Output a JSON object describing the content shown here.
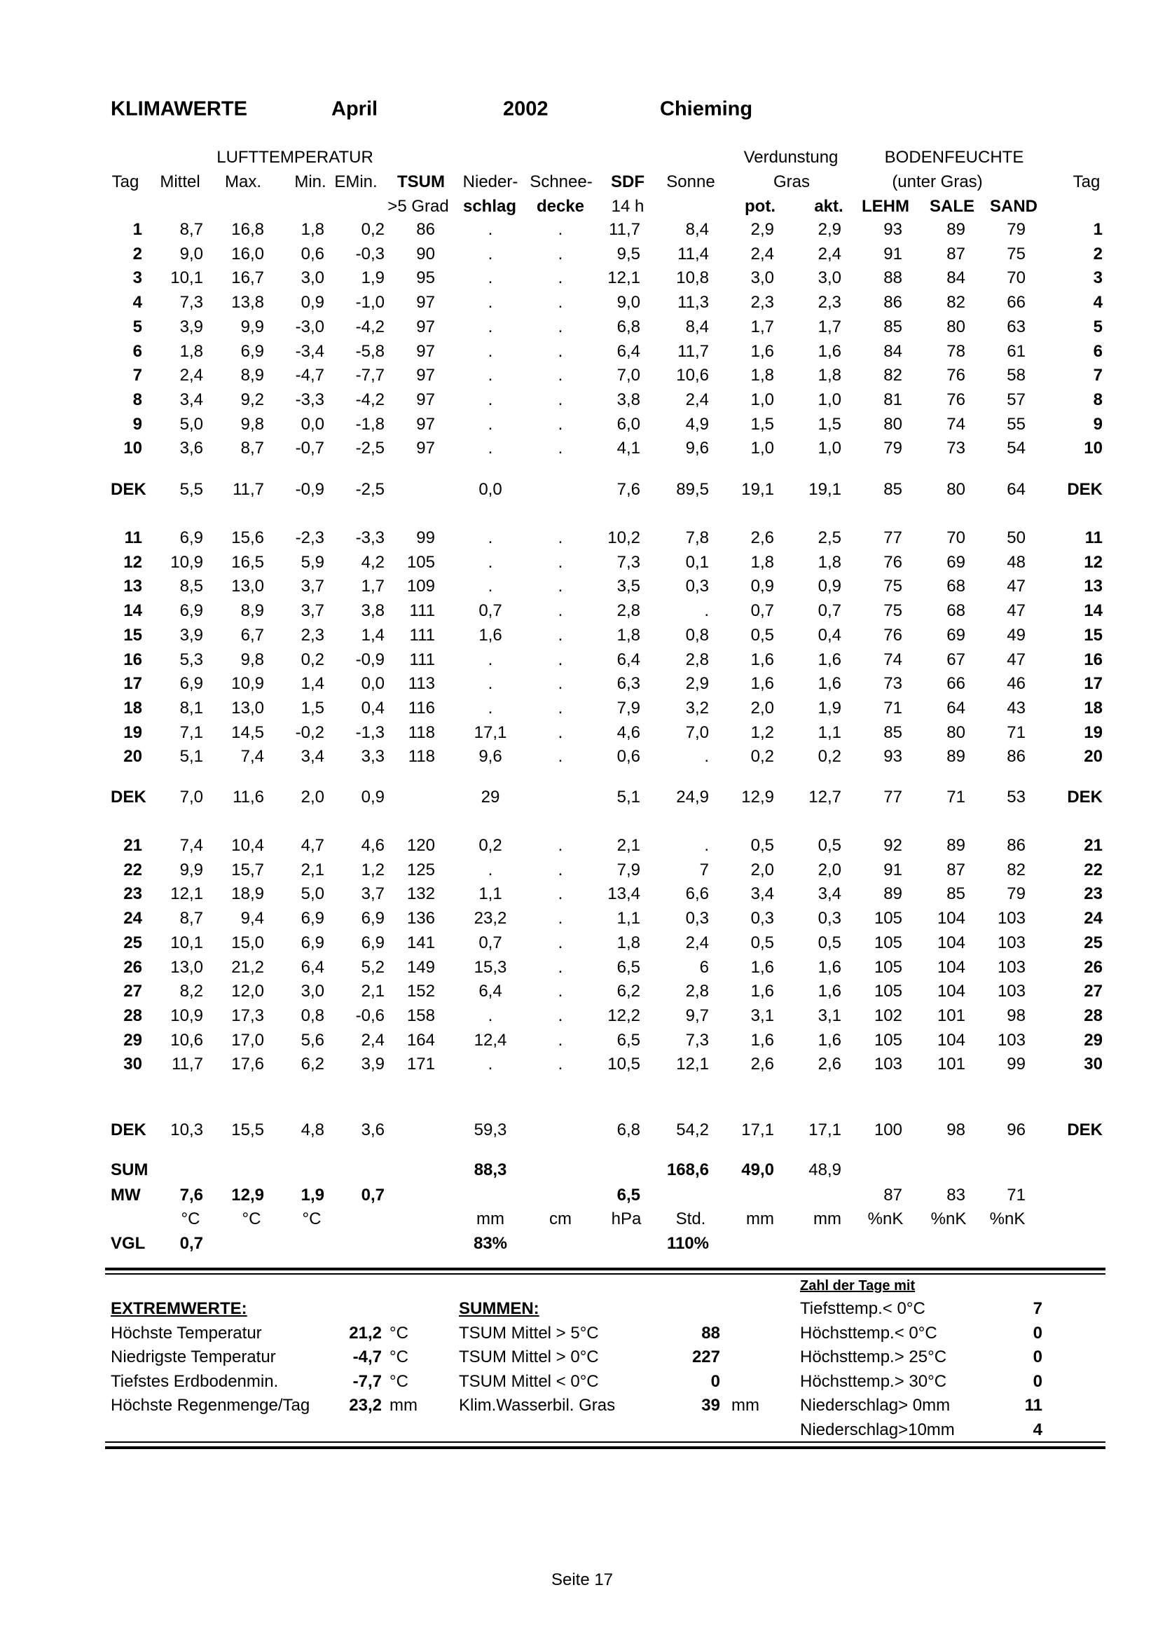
{
  "title": {
    "label": "KLIMAWERTE",
    "month": "April",
    "year": "2002",
    "station": "Chieming"
  },
  "header": {
    "group1": "LUFTTEMPERATUR",
    "group2": "Verdunstung",
    "group3": "BODENFEUCHTE",
    "row2": [
      "Tag",
      "Mittel",
      "Max.",
      "Min.",
      "EMin.",
      "TSUM",
      "Nieder-",
      "Schnee-",
      "SDF",
      "Sonne",
      "Gras",
      "(unter Gras)",
      "Tag"
    ],
    "row3": [
      ">5 Grad",
      "schlag",
      "decke",
      "14 h",
      "pot.",
      "akt.",
      "LEHM",
      "SALE",
      "SAND"
    ]
  },
  "table": {
    "block1": [
      [
        "1",
        "8,7",
        "16,8",
        "1,8",
        "0,2",
        "86",
        ".",
        ".",
        "11,7",
        "8,4",
        "2,9",
        "2,9",
        "93",
        "89",
        "79",
        "1"
      ],
      [
        "2",
        "9,0",
        "16,0",
        "0,6",
        "-0,3",
        "90",
        ".",
        ".",
        "9,5",
        "11,4",
        "2,4",
        "2,4",
        "91",
        "87",
        "75",
        "2"
      ],
      [
        "3",
        "10,1",
        "16,7",
        "3,0",
        "1,9",
        "95",
        ".",
        ".",
        "12,1",
        "10,8",
        "3,0",
        "3,0",
        "88",
        "84",
        "70",
        "3"
      ],
      [
        "4",
        "7,3",
        "13,8",
        "0,9",
        "-1,0",
        "97",
        ".",
        ".",
        "9,0",
        "11,3",
        "2,3",
        "2,3",
        "86",
        "82",
        "66",
        "4"
      ],
      [
        "5",
        "3,9",
        "9,9",
        "-3,0",
        "-4,2",
        "97",
        ".",
        ".",
        "6,8",
        "8,4",
        "1,7",
        "1,7",
        "85",
        "80",
        "63",
        "5"
      ],
      [
        "6",
        "1,8",
        "6,9",
        "-3,4",
        "-5,8",
        "97",
        ".",
        ".",
        "6,4",
        "11,7",
        "1,6",
        "1,6",
        "84",
        "78",
        "61",
        "6"
      ],
      [
        "7",
        "2,4",
        "8,9",
        "-4,7",
        "-7,7",
        "97",
        ".",
        ".",
        "7,0",
        "10,6",
        "1,8",
        "1,8",
        "82",
        "76",
        "58",
        "7"
      ],
      [
        "8",
        "3,4",
        "9,2",
        "-3,3",
        "-4,2",
        "97",
        ".",
        ".",
        "3,8",
        "2,4",
        "1,0",
        "1,0",
        "81",
        "76",
        "57",
        "8"
      ],
      [
        "9",
        "5,0",
        "9,8",
        "0,0",
        "-1,8",
        "97",
        ".",
        ".",
        "6,0",
        "4,9",
        "1,5",
        "1,5",
        "80",
        "74",
        "55",
        "9"
      ],
      [
        "10",
        "3,6",
        "8,7",
        "-0,7",
        "-2,5",
        "97",
        ".",
        ".",
        "4,1",
        "9,6",
        "1,0",
        "1,0",
        "79",
        "73",
        "54",
        "10"
      ]
    ],
    "dek1": [
      "DEK",
      "5,5",
      "11,7",
      "-0,9",
      "-2,5",
      "",
      "0,0",
      "",
      "7,6",
      "89,5",
      "19,1",
      "19,1",
      "85",
      "80",
      "64",
      "DEK"
    ],
    "block2": [
      [
        "11",
        "6,9",
        "15,6",
        "-2,3",
        "-3,3",
        "99",
        ".",
        ".",
        "10,2",
        "7,8",
        "2,6",
        "2,5",
        "77",
        "70",
        "50",
        "11"
      ],
      [
        "12",
        "10,9",
        "16,5",
        "5,9",
        "4,2",
        "105",
        ".",
        ".",
        "7,3",
        "0,1",
        "1,8",
        "1,8",
        "76",
        "69",
        "48",
        "12"
      ],
      [
        "13",
        "8,5",
        "13,0",
        "3,7",
        "1,7",
        "109",
        ".",
        ".",
        "3,5",
        "0,3",
        "0,9",
        "0,9",
        "75",
        "68",
        "47",
        "13"
      ],
      [
        "14",
        "6,9",
        "8,9",
        "3,7",
        "3,8",
        "111",
        "0,7",
        ".",
        "2,8",
        ".",
        "0,7",
        "0,7",
        "75",
        "68",
        "47",
        "14"
      ],
      [
        "15",
        "3,9",
        "6,7",
        "2,3",
        "1,4",
        "111",
        "1,6",
        ".",
        "1,8",
        "0,8",
        "0,5",
        "0,4",
        "76",
        "69",
        "49",
        "15"
      ],
      [
        "16",
        "5,3",
        "9,8",
        "0,2",
        "-0,9",
        "111",
        ".",
        ".",
        "6,4",
        "2,8",
        "1,6",
        "1,6",
        "74",
        "67",
        "47",
        "16"
      ],
      [
        "17",
        "6,9",
        "10,9",
        "1,4",
        "0,0",
        "113",
        ".",
        ".",
        "6,3",
        "2,9",
        "1,6",
        "1,6",
        "73",
        "66",
        "46",
        "17"
      ],
      [
        "18",
        "8,1",
        "13,0",
        "1,5",
        "0,4",
        "116",
        ".",
        ".",
        "7,9",
        "3,2",
        "2,0",
        "1,9",
        "71",
        "64",
        "43",
        "18"
      ],
      [
        "19",
        "7,1",
        "14,5",
        "-0,2",
        "-1,3",
        "118",
        "17,1",
        ".",
        "4,6",
        "7,0",
        "1,2",
        "1,1",
        "85",
        "80",
        "71",
        "19"
      ],
      [
        "20",
        "5,1",
        "7,4",
        "3,4",
        "3,3",
        "118",
        "9,6",
        ".",
        "0,6",
        ".",
        "0,2",
        "0,2",
        "93",
        "89",
        "86",
        "20"
      ]
    ],
    "dek2": [
      "DEK",
      "7,0",
      "11,6",
      "2,0",
      "0,9",
      "",
      "29",
      "",
      "5,1",
      "24,9",
      "12,9",
      "12,7",
      "77",
      "71",
      "53",
      "DEK"
    ],
    "block3": [
      [
        "21",
        "7,4",
        "10,4",
        "4,7",
        "4,6",
        "120",
        "0,2",
        ".",
        "2,1",
        ".",
        "0,5",
        "0,5",
        "92",
        "89",
        "86",
        "21"
      ],
      [
        "22",
        "9,9",
        "15,7",
        "2,1",
        "1,2",
        "125",
        ".",
        ".",
        "7,9",
        "7",
        "2,0",
        "2,0",
        "91",
        "87",
        "82",
        "22"
      ],
      [
        "23",
        "12,1",
        "18,9",
        "5,0",
        "3,7",
        "132",
        "1,1",
        ".",
        "13,4",
        "6,6",
        "3,4",
        "3,4",
        "89",
        "85",
        "79",
        "23"
      ],
      [
        "24",
        "8,7",
        "9,4",
        "6,9",
        "6,9",
        "136",
        "23,2",
        ".",
        "1,1",
        "0,3",
        "0,3",
        "0,3",
        "105",
        "104",
        "103",
        "24"
      ],
      [
        "25",
        "10,1",
        "15,0",
        "6,9",
        "6,9",
        "141",
        "0,7",
        ".",
        "1,8",
        "2,4",
        "0,5",
        "0,5",
        "105",
        "104",
        "103",
        "25"
      ],
      [
        "26",
        "13,0",
        "21,2",
        "6,4",
        "5,2",
        "149",
        "15,3",
        ".",
        "6,5",
        "6",
        "1,6",
        "1,6",
        "105",
        "104",
        "103",
        "26"
      ],
      [
        "27",
        "8,2",
        "12,0",
        "3,0",
        "2,1",
        "152",
        "6,4",
        ".",
        "6,2",
        "2,8",
        "1,6",
        "1,6",
        "105",
        "104",
        "103",
        "27"
      ],
      [
        "28",
        "10,9",
        "17,3",
        "0,8",
        "-0,6",
        "158",
        ".",
        ".",
        "12,2",
        "9,7",
        "3,1",
        "3,1",
        "102",
        "101",
        "98",
        "28"
      ],
      [
        "29",
        "10,6",
        "17,0",
        "5,6",
        "2,4",
        "164",
        "12,4",
        ".",
        "6,5",
        "7,3",
        "1,6",
        "1,6",
        "105",
        "104",
        "103",
        "29"
      ],
      [
        "30",
        "11,7",
        "17,6",
        "6,2",
        "3,9",
        "171",
        ".",
        ".",
        "10,5",
        "12,1",
        "2,6",
        "2,6",
        "103",
        "101",
        "99",
        "30"
      ]
    ],
    "dek3": [
      "DEK",
      "10,3",
      "15,5",
      "4,8",
      "3,6",
      "",
      "59,3",
      "",
      "6,8",
      "54,2",
      "17,1",
      "17,1",
      "100",
      "98",
      "96",
      "DEK"
    ],
    "sum": [
      "SUM",
      "",
      "",
      "",
      "",
      "",
      "88,3",
      "",
      "",
      "168,6",
      "49,0",
      "48,9",
      "",
      "",
      "",
      ""
    ],
    "mw": [
      "MW",
      "7,6",
      "12,9",
      "1,9",
      "0,7",
      "",
      "",
      "",
      "6,5",
      "",
      "",
      "",
      "87",
      "83",
      "71",
      ""
    ],
    "units": [
      "",
      "°C",
      "°C",
      "°C",
      "",
      "",
      "mm",
      "cm",
      "hPa",
      "Std.",
      "mm",
      "mm",
      "%nK",
      "%nK",
      "%nK",
      ""
    ],
    "vgl": [
      "VGL",
      "0,7",
      "",
      "",
      "",
      "",
      "83%",
      "",
      "",
      "110%",
      "",
      "",
      "",
      "",
      "",
      ""
    ]
  },
  "extremwerte": {
    "heading": "EXTREMWERTE:",
    "items": [
      {
        "label": "Höchste Temperatur",
        "value": "21,2",
        "unit": "°C"
      },
      {
        "label": "Niedrigste Temperatur",
        "value": "-4,7",
        "unit": "°C"
      },
      {
        "label": "Tiefstes Erdbodenmin.",
        "value": "-7,7",
        "unit": "°C"
      },
      {
        "label": "Höchste Regenmenge/Tag",
        "value": "23,2",
        "unit": "mm"
      }
    ]
  },
  "summen": {
    "heading": "SUMMEN:",
    "items": [
      {
        "label": "TSUM Mittel > 5°C",
        "value": "88",
        "unit": ""
      },
      {
        "label": "TSUM Mittel > 0°C",
        "value": "227",
        "unit": ""
      },
      {
        "label": "TSUM Mittel < 0°C",
        "value": "0",
        "unit": ""
      },
      {
        "label": "Klim.Wasserbil. Gras",
        "value": "39",
        "unit": "mm"
      }
    ]
  },
  "tage": {
    "heading": "Zahl der Tage mit",
    "items": [
      {
        "label": "Tiefsttemp.< 0°C",
        "value": "7"
      },
      {
        "label": "Höchsttemp.< 0°C",
        "value": "0"
      },
      {
        "label": "Höchsttemp.> 25°C",
        "value": "0"
      },
      {
        "label": "Höchsttemp.> 30°C",
        "value": "0"
      },
      {
        "label": "Niederschlag> 0mm",
        "value": "11"
      },
      {
        "label": "Niederschlag>10mm",
        "value": "4"
      }
    ]
  },
  "footer": {
    "page": "Seite 17"
  }
}
